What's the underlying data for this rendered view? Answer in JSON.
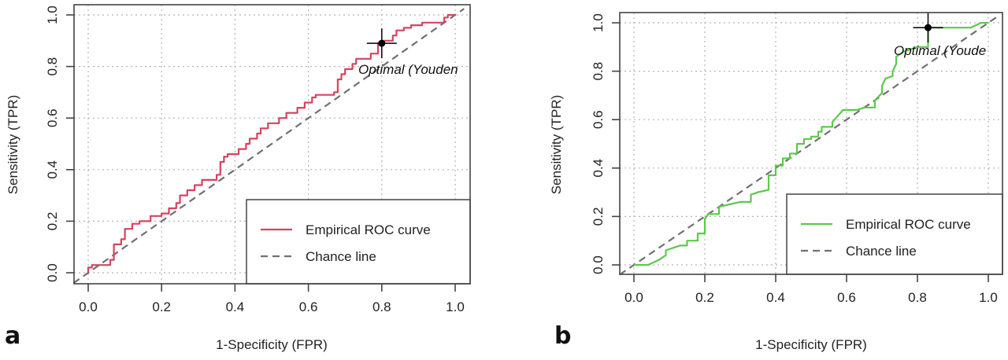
{
  "chart_data": [
    {
      "type": "line",
      "panel_label": "a",
      "title": "",
      "xlabel": "1-Specificity (FPR)",
      "ylabel": "Sensitivity (TPR)",
      "xlim": [
        0,
        1
      ],
      "ylim": [
        0,
        1
      ],
      "x_ticks": [
        "0.0",
        "0.2",
        "0.4",
        "0.6",
        "0.8",
        "1.0"
      ],
      "y_ticks": [
        "0.0",
        "0.2",
        "0.4",
        "0.6",
        "0.8",
        "1.0"
      ],
      "grid": true,
      "legend_position": "bottom-right",
      "series": [
        {
          "name": "Empirical ROC curve",
          "color": "#d6445f",
          "style": "step",
          "points": [
            [
              0,
              0
            ],
            [
              0,
              0.02
            ],
            [
              0.01,
              0.02
            ],
            [
              0.01,
              0.03
            ],
            [
              0.06,
              0.03
            ],
            [
              0.06,
              0.05
            ],
            [
              0.07,
              0.05
            ],
            [
              0.07,
              0.11
            ],
            [
              0.09,
              0.11
            ],
            [
              0.09,
              0.13
            ],
            [
              0.1,
              0.13
            ],
            [
              0.1,
              0.17
            ],
            [
              0.12,
              0.17
            ],
            [
              0.12,
              0.19
            ],
            [
              0.14,
              0.19
            ],
            [
              0.14,
              0.2
            ],
            [
              0.17,
              0.2
            ],
            [
              0.17,
              0.22
            ],
            [
              0.2,
              0.22
            ],
            [
              0.2,
              0.23
            ],
            [
              0.22,
              0.23
            ],
            [
              0.22,
              0.25
            ],
            [
              0.24,
              0.25
            ],
            [
              0.24,
              0.27
            ],
            [
              0.25,
              0.27
            ],
            [
              0.25,
              0.3
            ],
            [
              0.27,
              0.3
            ],
            [
              0.27,
              0.32
            ],
            [
              0.29,
              0.32
            ],
            [
              0.29,
              0.34
            ],
            [
              0.31,
              0.34
            ],
            [
              0.31,
              0.36
            ],
            [
              0.35,
              0.36
            ],
            [
              0.35,
              0.38
            ],
            [
              0.36,
              0.38
            ],
            [
              0.36,
              0.43
            ],
            [
              0.37,
              0.43
            ],
            [
              0.37,
              0.45
            ],
            [
              0.38,
              0.45
            ],
            [
              0.38,
              0.46
            ],
            [
              0.41,
              0.46
            ],
            [
              0.41,
              0.48
            ],
            [
              0.43,
              0.48
            ],
            [
              0.43,
              0.5
            ],
            [
              0.44,
              0.5
            ],
            [
              0.44,
              0.52
            ],
            [
              0.46,
              0.52
            ],
            [
              0.46,
              0.54
            ],
            [
              0.47,
              0.54
            ],
            [
              0.47,
              0.56
            ],
            [
              0.49,
              0.56
            ],
            [
              0.49,
              0.58
            ],
            [
              0.52,
              0.58
            ],
            [
              0.52,
              0.6
            ],
            [
              0.54,
              0.6
            ],
            [
              0.54,
              0.62
            ],
            [
              0.57,
              0.62
            ],
            [
              0.57,
              0.64
            ],
            [
              0.59,
              0.64
            ],
            [
              0.59,
              0.66
            ],
            [
              0.61,
              0.66
            ],
            [
              0.61,
              0.68
            ],
            [
              0.62,
              0.68
            ],
            [
              0.62,
              0.69
            ],
            [
              0.67,
              0.69
            ],
            [
              0.67,
              0.7
            ],
            [
              0.68,
              0.7
            ],
            [
              0.68,
              0.75
            ],
            [
              0.69,
              0.75
            ],
            [
              0.69,
              0.77
            ],
            [
              0.7,
              0.77
            ],
            [
              0.7,
              0.79
            ],
            [
              0.72,
              0.79
            ],
            [
              0.72,
              0.81
            ],
            [
              0.73,
              0.81
            ],
            [
              0.73,
              0.83
            ],
            [
              0.77,
              0.83
            ],
            [
              0.77,
              0.85
            ],
            [
              0.79,
              0.85
            ],
            [
              0.79,
              0.89
            ],
            [
              0.8,
              0.89
            ],
            [
              0.8,
              0.9
            ],
            [
              0.83,
              0.9
            ],
            [
              0.83,
              0.92
            ],
            [
              0.84,
              0.92
            ],
            [
              0.84,
              0.94
            ],
            [
              0.86,
              0.94
            ],
            [
              0.86,
              0.95
            ],
            [
              0.88,
              0.95
            ],
            [
              0.88,
              0.96
            ],
            [
              0.91,
              0.96
            ],
            [
              0.91,
              0.97
            ],
            [
              0.97,
              0.97
            ],
            [
              0.97,
              0.99
            ],
            [
              0.98,
              0.99
            ],
            [
              0.98,
              1.0
            ],
            [
              1.0,
              1.0
            ]
          ]
        },
        {
          "name": "Chance line",
          "color": "#707070",
          "style": "dashed",
          "points": [
            [
              0,
              0
            ],
            [
              1,
              1
            ]
          ]
        }
      ],
      "optimal_point": {
        "x": 0.8,
        "y": 0.89,
        "label": "Optimal (Youden"
      }
    },
    {
      "type": "line",
      "panel_label": "b",
      "title": "",
      "xlabel": "1-Specificity (FPR)",
      "ylabel": "Sensitivity (TPR)",
      "xlim": [
        0,
        1
      ],
      "ylim": [
        0,
        1
      ],
      "x_ticks": [
        "0.0",
        "0.2",
        "0.4",
        "0.6",
        "0.8",
        "1.0"
      ],
      "y_ticks": [
        "0.0",
        "0.2",
        "0.4",
        "0.6",
        "0.8",
        "1.0"
      ],
      "grid": true,
      "legend_position": "bottom-right",
      "series": [
        {
          "name": "Empirical ROC curve",
          "color": "#5bc94a",
          "style": "step",
          "points": [
            [
              0,
              0
            ],
            [
              0.04,
              0
            ],
            [
              0.07,
              0.02
            ],
            [
              0.09,
              0.04
            ],
            [
              0.09,
              0.06
            ],
            [
              0.11,
              0.07
            ],
            [
              0.13,
              0.08
            ],
            [
              0.15,
              0.08
            ],
            [
              0.15,
              0.1
            ],
            [
              0.18,
              0.1
            ],
            [
              0.18,
              0.13
            ],
            [
              0.2,
              0.13
            ],
            [
              0.2,
              0.19
            ],
            [
              0.21,
              0.21
            ],
            [
              0.24,
              0.21
            ],
            [
              0.24,
              0.24
            ],
            [
              0.27,
              0.25
            ],
            [
              0.3,
              0.26
            ],
            [
              0.33,
              0.26
            ],
            [
              0.33,
              0.29
            ],
            [
              0.35,
              0.3
            ],
            [
              0.38,
              0.31
            ],
            [
              0.38,
              0.37
            ],
            [
              0.4,
              0.37
            ],
            [
              0.4,
              0.41
            ],
            [
              0.42,
              0.41
            ],
            [
              0.42,
              0.44
            ],
            [
              0.44,
              0.44
            ],
            [
              0.44,
              0.46
            ],
            [
              0.46,
              0.46
            ],
            [
              0.46,
              0.5
            ],
            [
              0.48,
              0.5
            ],
            [
              0.48,
              0.52
            ],
            [
              0.5,
              0.52
            ],
            [
              0.5,
              0.53
            ],
            [
              0.52,
              0.53
            ],
            [
              0.52,
              0.55
            ],
            [
              0.53,
              0.55
            ],
            [
              0.53,
              0.57
            ],
            [
              0.56,
              0.57
            ],
            [
              0.56,
              0.59
            ],
            [
              0.59,
              0.64
            ],
            [
              0.63,
              0.64
            ],
            [
              0.65,
              0.65
            ],
            [
              0.68,
              0.65
            ],
            [
              0.68,
              0.68
            ],
            [
              0.7,
              0.71
            ],
            [
              0.7,
              0.74
            ],
            [
              0.71,
              0.77
            ],
            [
              0.73,
              0.78
            ],
            [
              0.73,
              0.8
            ],
            [
              0.74,
              0.83
            ],
            [
              0.74,
              0.86
            ],
            [
              0.76,
              0.88
            ],
            [
              0.8,
              0.9
            ],
            [
              0.83,
              0.9
            ],
            [
              0.83,
              0.98
            ],
            [
              0.95,
              0.98
            ],
            [
              0.98,
              1.0
            ],
            [
              1.0,
              1.0
            ]
          ]
        },
        {
          "name": "Chance line",
          "color": "#707070",
          "style": "dashed",
          "points": [
            [
              0,
              0
            ],
            [
              1,
              1
            ]
          ]
        }
      ],
      "optimal_point": {
        "x": 0.83,
        "y": 0.98,
        "label": "Optimal (Youde"
      }
    }
  ]
}
